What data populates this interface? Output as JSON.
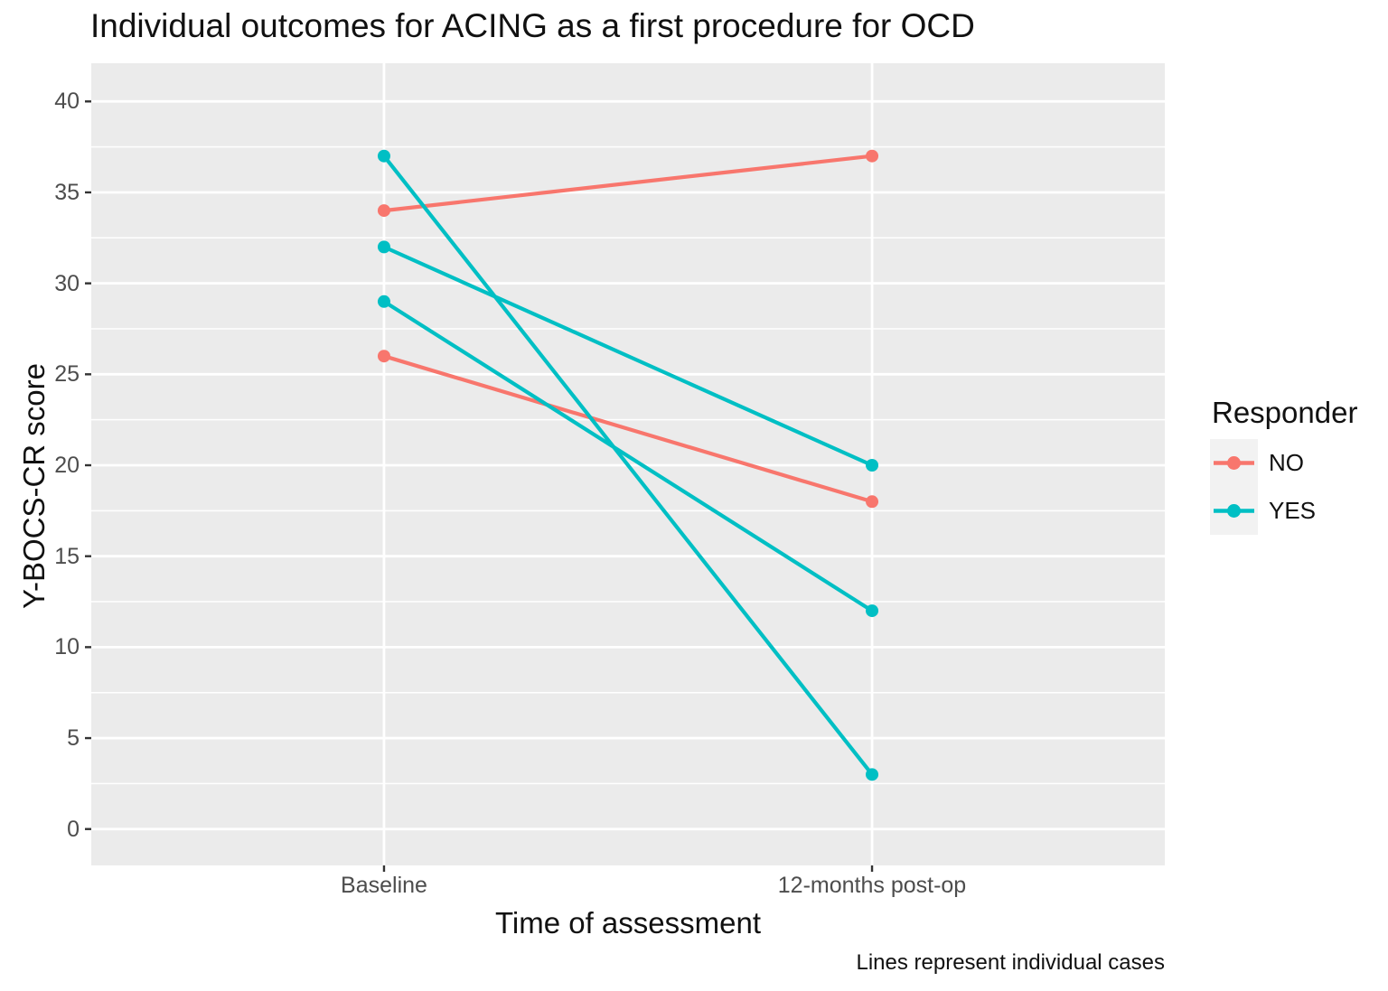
{
  "title": "Individual outcomes for ACING as a first procedure for OCD",
  "caption": "Lines represent individual cases",
  "legend": {
    "title": "Responder",
    "entries": [
      {
        "label": "NO",
        "color": "#F8766D"
      },
      {
        "label": "YES",
        "color": "#00BFC4"
      }
    ]
  },
  "colors": {
    "panel_background": "#EBEBEB",
    "gridline": "#FFFFFF",
    "tick_text": "#4D4D4D",
    "axis_tick_mark": "#333333",
    "legend_key_background": "#F2F2F2",
    "responder_no": "#F8766D",
    "responder_yes": "#00BFC4"
  },
  "chart_data": {
    "type": "line",
    "title": "Individual outcomes for ACING as a first procedure for OCD",
    "xlabel": "Time of assessment",
    "ylabel": "Y-BOCS-CR score",
    "caption": "Lines represent individual cases",
    "x_categories": [
      "Baseline",
      "12-months post-op"
    ],
    "y_ticks": [
      0,
      5,
      10,
      15,
      20,
      25,
      30,
      35,
      40
    ],
    "y_minor_ticks": [
      2.5,
      7.5,
      12.5,
      17.5,
      22.5,
      27.5,
      32.5,
      37.5
    ],
    "ylim": [
      -2,
      42.1
    ],
    "grid": true,
    "legend_title": "Responder",
    "legend_position": "right",
    "series": [
      {
        "name": "case-1",
        "responder": "NO",
        "color": "#F8766D",
        "values": [
          34,
          37
        ]
      },
      {
        "name": "case-2",
        "responder": "NO",
        "color": "#F8766D",
        "values": [
          26,
          18
        ]
      },
      {
        "name": "case-3",
        "responder": "YES",
        "color": "#00BFC4",
        "values": [
          37,
          3
        ]
      },
      {
        "name": "case-4",
        "responder": "YES",
        "color": "#00BFC4",
        "values": [
          32,
          20
        ]
      },
      {
        "name": "case-5",
        "responder": "YES",
        "color": "#00BFC4",
        "values": [
          29,
          12
        ]
      }
    ]
  }
}
